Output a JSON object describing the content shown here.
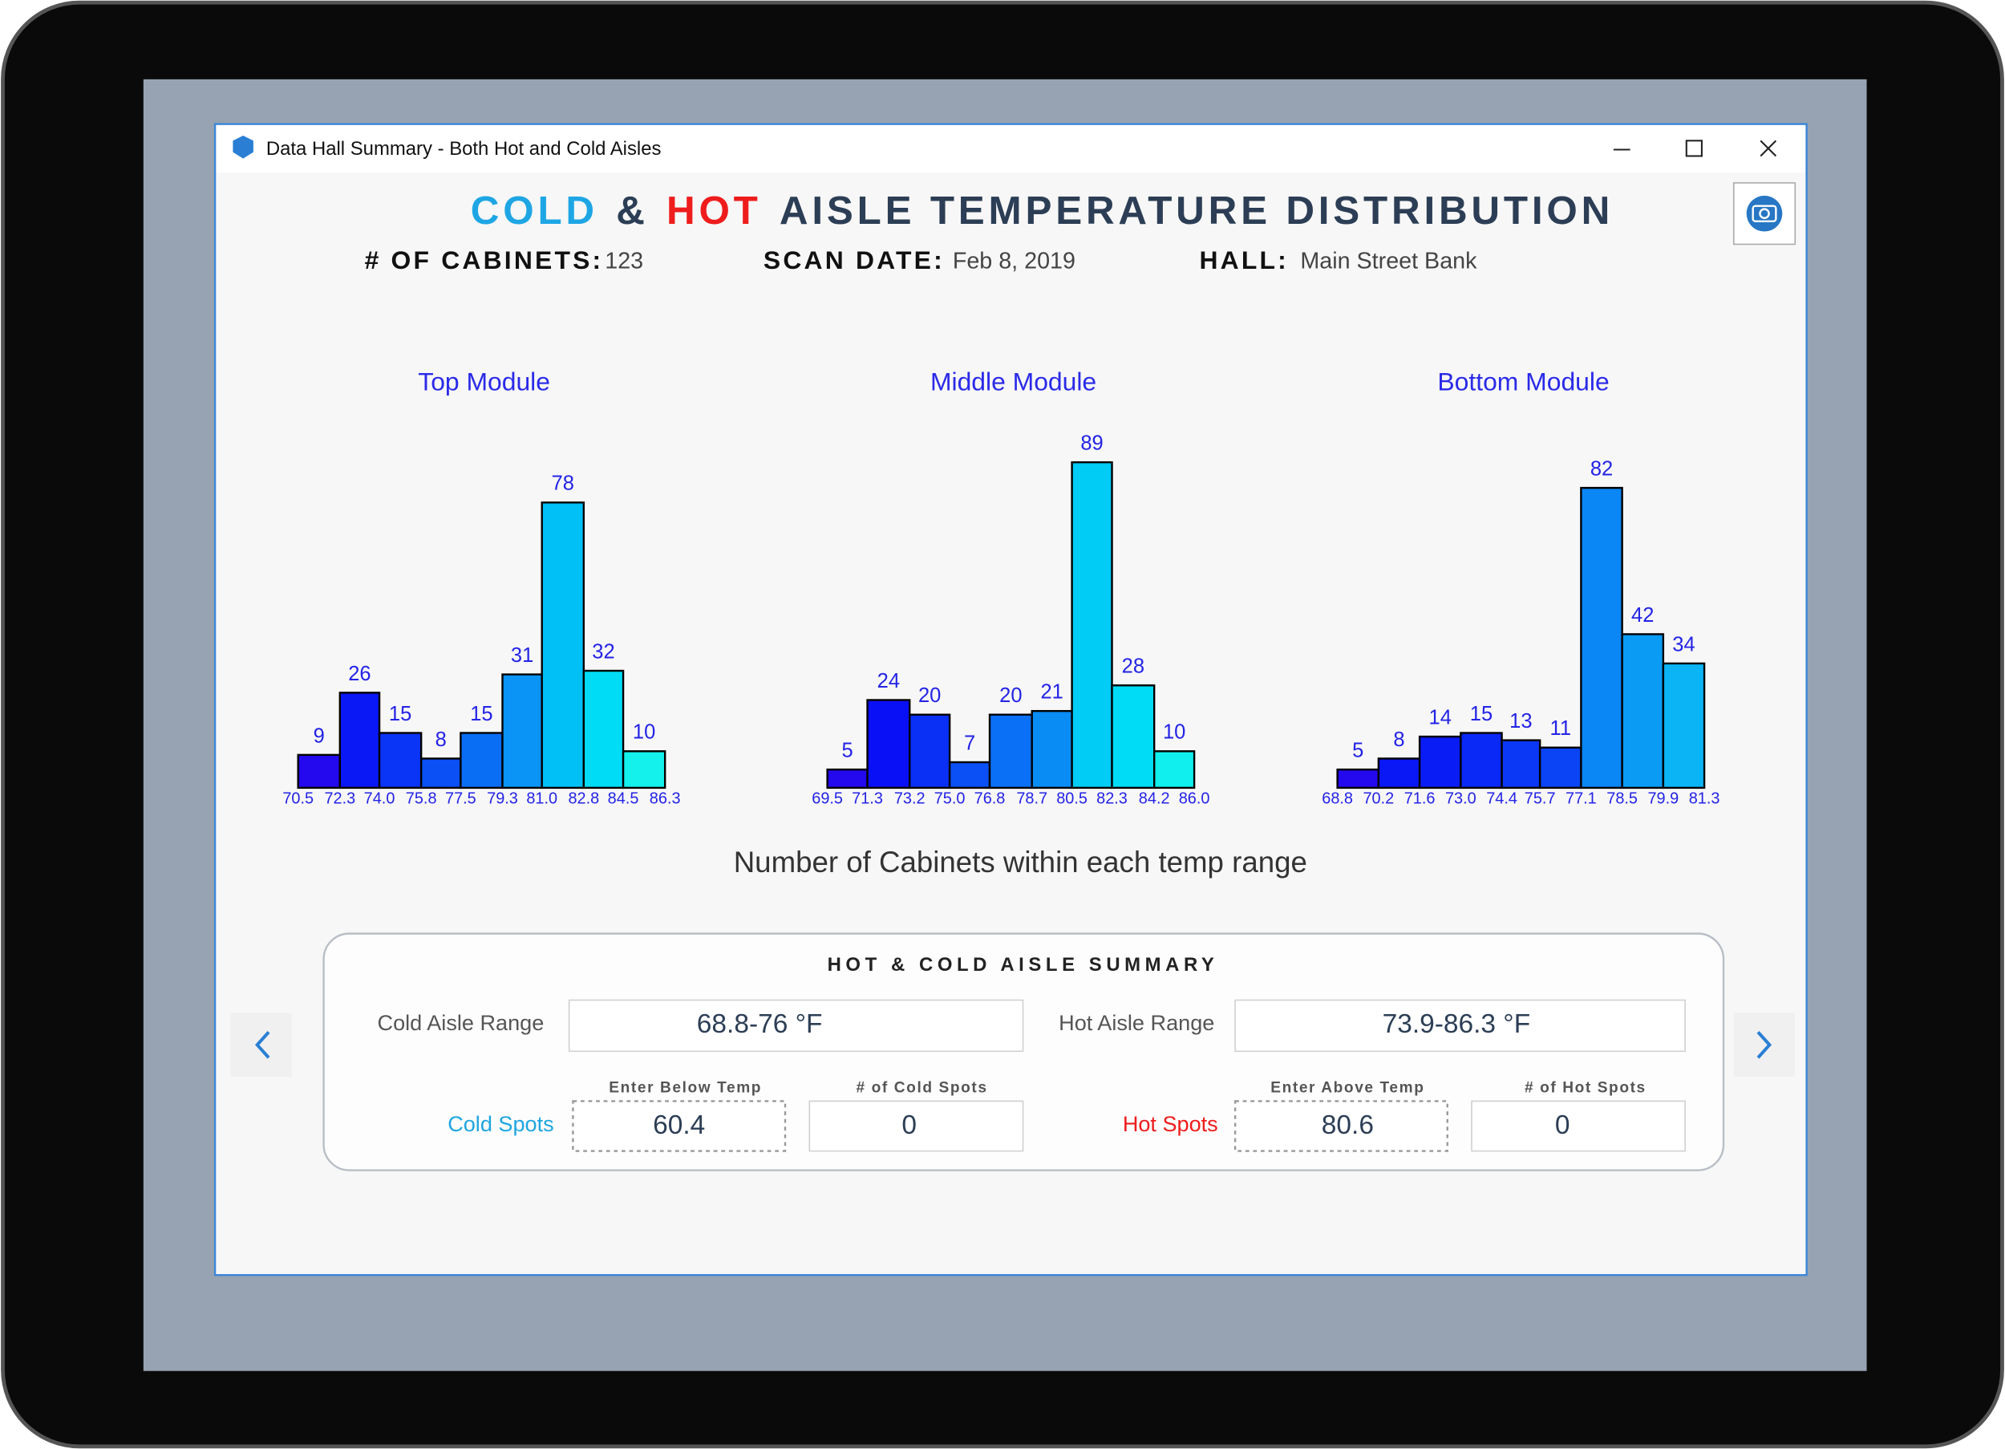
{
  "window": {
    "title": "Data Hall Summary - Both Hot and Cold Aisles"
  },
  "header": {
    "title_cold": "COLD",
    "title_amp": "&",
    "title_hot": "HOT",
    "title_rest": "AISLE TEMPERATURE DISTRIBUTION",
    "cabinets_label": "# OF CABINETS:",
    "cabinets_value": "123",
    "scan_date_label": "SCAN DATE:",
    "scan_date_value": "Feb 8, 2019",
    "hall_label": "HALL:",
    "hall_value": "Main Street Bank"
  },
  "chart_data": [
    {
      "type": "histogram",
      "title": "Top Module",
      "bins": [
        70.5,
        72.3,
        {
          "value": 74,
          "label": "74.0"
        },
        75.8,
        77.5,
        79.3,
        {
          "value": 81,
          "label": "81.0"
        },
        82.8,
        84.5,
        86.3
      ],
      "values": [
        9,
        26,
        15,
        8,
        15,
        31,
        78,
        32,
        10
      ],
      "colors": [
        "#2408ee",
        "#0a18f6",
        "#0a34f6",
        "#0a50f5",
        "#0a6ef5",
        "#0a94f5",
        "#00c0f6",
        "#00dcf6",
        "#14f0ec"
      ]
    },
    {
      "type": "histogram",
      "title": "Middle Module",
      "bins": [
        69.5,
        71.3,
        73.2,
        {
          "value": 75,
          "label": "75.0"
        },
        76.8,
        78.7,
        80.5,
        82.3,
        84.2,
        {
          "value": 86,
          "label": "86.0"
        }
      ],
      "values": [
        5,
        24,
        20,
        7,
        20,
        21,
        89,
        28,
        10
      ],
      "colors": [
        "#2408ee",
        "#0a10f6",
        "#0a30f6",
        "#0a50f5",
        "#0a70f5",
        "#0a8cf5",
        "#00ccf6",
        "#00dcf6",
        "#10eeee"
      ]
    },
    {
      "type": "histogram",
      "title": "Bottom Module",
      "bins": [
        68.8,
        70.2,
        71.6,
        {
          "value": 73,
          "label": "73.0"
        },
        74.4,
        75.7,
        77.1,
        78.5,
        79.9,
        81.3
      ],
      "values": [
        5,
        8,
        14,
        15,
        13,
        11,
        82,
        42,
        34
      ],
      "colors": [
        "#2408ee",
        "#0a18f6",
        "#0a1cf6",
        "#0a28f6",
        "#0a38f5",
        "#0a44f5",
        "#0a86f5",
        "#0a9cf5",
        "#0ab4f5"
      ]
    }
  ],
  "caption": "Number of Cabinets within each temp range",
  "summary": {
    "title": "HOT & COLD AISLE SUMMARY",
    "cold_range_label": "Cold Aisle Range",
    "cold_range_value": "68.8-76 °F",
    "hot_range_label": "Hot Aisle  Range",
    "hot_range_value": "73.9-86.3 °F",
    "cold_spots_label": "Cold Spots",
    "below_temp_label": "Enter Below Temp",
    "below_temp_value": "60.4",
    "cold_count_label": "# of Cold Spots",
    "cold_count_value": "0",
    "hot_spots_label": "Hot Spots",
    "above_temp_label": "Enter Above Temp",
    "above_temp_value": "80.6",
    "hot_count_label": "# of  Hot Spots",
    "hot_count_value": "0"
  }
}
